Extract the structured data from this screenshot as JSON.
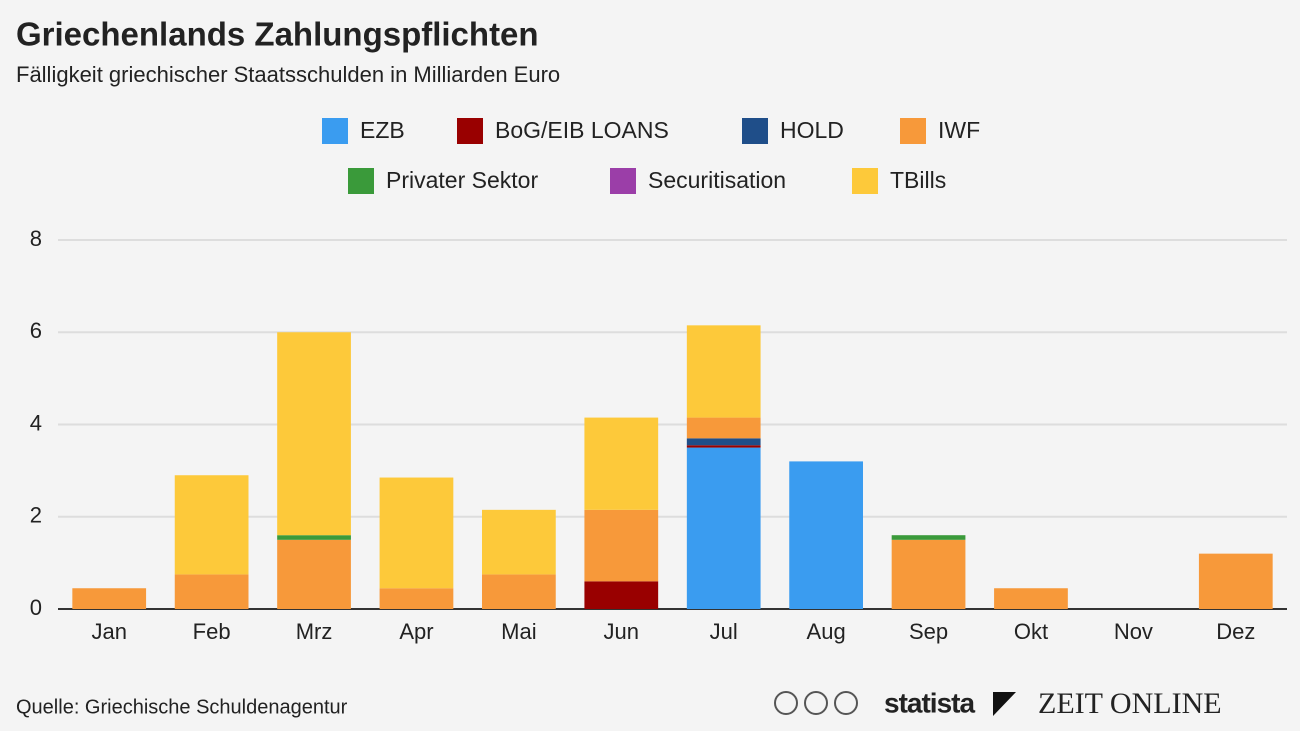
{
  "chart_data": {
    "type": "stacked_bar",
    "title": "Griechenlands Zahlungspflichten",
    "subtitle": "Fälligkeit griechischer Staatsschulden in Milliarden Euro",
    "categories": [
      "Jan",
      "Feb",
      "Mrz",
      "Apr",
      "Mai",
      "Jun",
      "Jul",
      "Aug",
      "Sep",
      "Okt",
      "Nov",
      "Dez"
    ],
    "series": [
      {
        "name": "EZB",
        "color": "#3a9cf0",
        "values": [
          0,
          0,
          0,
          0,
          0,
          0,
          3.5,
          3.2,
          0,
          0,
          0,
          0
        ]
      },
      {
        "name": "BoG/EIB LOANS",
        "color": "#990000",
        "values": [
          0,
          0,
          0,
          0,
          0,
          0.6,
          0.05,
          0,
          0,
          0,
          0,
          0
        ]
      },
      {
        "name": "HOLD",
        "color": "#1f4e89",
        "values": [
          0,
          0,
          0,
          0,
          0,
          0,
          0.15,
          0,
          0,
          0,
          0,
          0
        ]
      },
      {
        "name": "IWF",
        "color": "#f7993a",
        "values": [
          0.45,
          0.75,
          1.5,
          0.45,
          0.75,
          1.55,
          0.45,
          0,
          1.5,
          0.45,
          0,
          1.2
        ]
      },
      {
        "name": "Privater Sektor",
        "color": "#3a9a3a",
        "values": [
          0,
          0,
          0.1,
          0,
          0,
          0,
          0,
          0,
          0.1,
          0,
          0,
          0
        ]
      },
      {
        "name": "Securitisation",
        "color": "#9b3ea8",
        "values": [
          0,
          0,
          0,
          0,
          0,
          0,
          0,
          0,
          0,
          0,
          0,
          0
        ]
      },
      {
        "name": "TBills",
        "color": "#fdc93a",
        "values": [
          0,
          2.15,
          4.4,
          2.4,
          1.4,
          2.0,
          2.0,
          0,
          0,
          0,
          0,
          0
        ]
      }
    ],
    "ylim": [
      0,
      8
    ],
    "yticks": [
      0,
      2,
      4,
      6,
      8
    ],
    "grid": true,
    "source": "Quelle: Griechische Schuldenagentur",
    "brands": [
      "statista",
      "ZEIT ONLINE"
    ]
  }
}
